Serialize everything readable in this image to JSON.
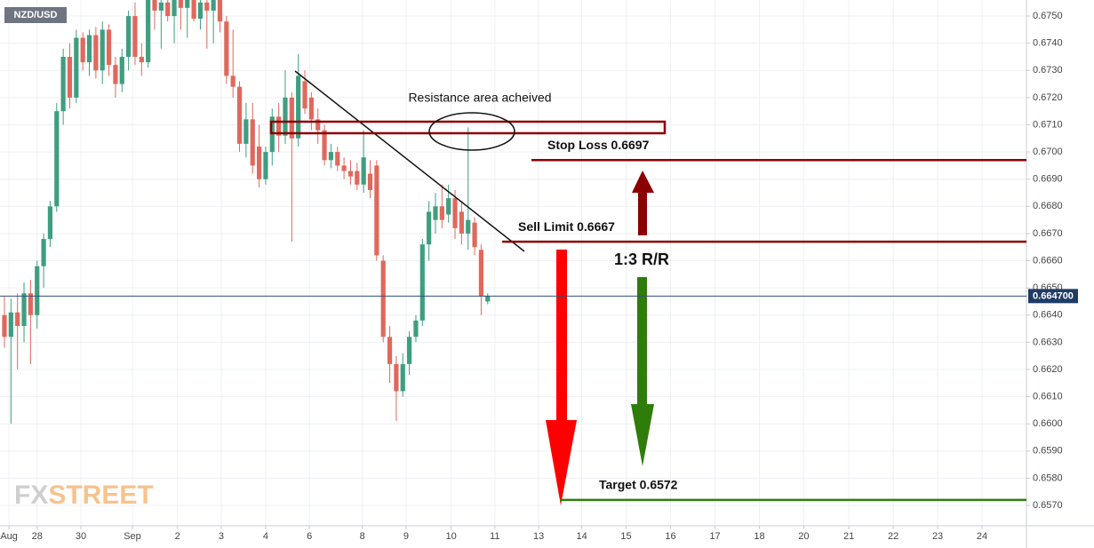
{
  "chart_data": {
    "type": "candlestick",
    "title": "NZD/USD",
    "up_color": "#3e9e80",
    "down_color": "#e0685c",
    "open": [
      0.664,
      0.6632,
      0.6641,
      0.6636,
      0.6648,
      0.664,
      0.6658,
      0.6668,
      0.668,
      0.6715,
      0.6735,
      0.672,
      0.6742,
      0.6733,
      0.6743,
      0.673,
      0.6745,
      0.6732,
      0.6725,
      0.6735,
      0.675,
      0.6735,
      0.6733,
      0.6756,
      0.6752,
      0.6755,
      0.675,
      0.6757,
      0.6753,
      0.6756,
      0.6749,
      0.6755,
      0.6752,
      0.6756,
      0.6748,
      0.6728,
      0.6724,
      0.6703,
      0.6712,
      0.6702,
      0.669,
      0.67,
      0.6713,
      0.6706,
      0.672,
      0.6705,
      0.6726,
      0.672,
      0.6712,
      0.6708,
      0.6697,
      0.67,
      0.6695,
      0.6693,
      0.6693,
      0.6688,
      0.6692,
      0.6695,
      0.666,
      0.6632,
      0.6622,
      0.6612,
      0.6622,
      0.6632,
      0.6638,
      0.6666,
      0.6675,
      0.668,
      0.6677,
      0.6683,
      0.6678,
      0.667,
      0.6674,
      0.6664,
      0.6645
    ],
    "high": [
      0.6647,
      0.6646,
      0.6648,
      0.6652,
      0.6653,
      0.666,
      0.667,
      0.6682,
      0.6718,
      0.6738,
      0.674,
      0.6745,
      0.6744,
      0.6745,
      0.6746,
      0.6748,
      0.6747,
      0.6735,
      0.6738,
      0.6752,
      0.6755,
      0.674,
      0.6758,
      0.676,
      0.6758,
      0.676,
      0.676,
      0.676,
      0.6758,
      0.676,
      0.6758,
      0.676,
      0.676,
      0.676,
      0.675,
      0.6745,
      0.6726,
      0.6718,
      0.6718,
      0.671,
      0.6702,
      0.6716,
      0.6718,
      0.673,
      0.6722,
      0.6736,
      0.673,
      0.6722,
      0.6716,
      0.671,
      0.6703,
      0.6702,
      0.6698,
      0.6697,
      0.6696,
      0.6708,
      0.6697,
      0.6697,
      0.6662,
      0.6636,
      0.6625,
      0.6626,
      0.6634,
      0.664,
      0.6668,
      0.6682,
      0.6685,
      0.6688,
      0.6688,
      0.6686,
      0.6682,
      0.6709,
      0.6676,
      0.6666,
      0.6648
    ],
    "low": [
      0.6628,
      0.66,
      0.662,
      0.663,
      0.6622,
      0.6635,
      0.665,
      0.6665,
      0.6678,
      0.671,
      0.6716,
      0.6718,
      0.673,
      0.6728,
      0.6727,
      0.6725,
      0.6728,
      0.672,
      0.6722,
      0.673,
      0.6732,
      0.6728,
      0.6731,
      0.6745,
      0.6738,
      0.6748,
      0.674,
      0.6745,
      0.6742,
      0.6748,
      0.6745,
      0.6738,
      0.674,
      0.6744,
      0.6725,
      0.672,
      0.67,
      0.6698,
      0.6692,
      0.6687,
      0.6688,
      0.6695,
      0.67,
      0.6703,
      0.6667,
      0.6702,
      0.6714,
      0.6708,
      0.6703,
      0.6695,
      0.6694,
      0.6693,
      0.669,
      0.6688,
      0.6686,
      0.6685,
      0.6683,
      0.666,
      0.663,
      0.6615,
      0.6601,
      0.661,
      0.6618,
      0.663,
      0.6636,
      0.666,
      0.667,
      0.6672,
      0.6674,
      0.6668,
      0.6666,
      0.6664,
      0.6662,
      0.664,
      0.6644
    ],
    "close": [
      0.6632,
      0.6641,
      0.6636,
      0.6648,
      0.664,
      0.6658,
      0.6668,
      0.668,
      0.6715,
      0.6735,
      0.672,
      0.6742,
      0.6733,
      0.6743,
      0.673,
      0.6745,
      0.6732,
      0.6725,
      0.6735,
      0.675,
      0.6735,
      0.6733,
      0.6756,
      0.6752,
      0.6755,
      0.675,
      0.6757,
      0.6753,
      0.6756,
      0.6749,
      0.6755,
      0.6752,
      0.6756,
      0.6748,
      0.6728,
      0.6724,
      0.6703,
      0.6712,
      0.6695,
      0.669,
      0.67,
      0.6713,
      0.6706,
      0.672,
      0.6705,
      0.6728,
      0.6716,
      0.6712,
      0.6708,
      0.6697,
      0.67,
      0.6695,
      0.6693,
      0.6691,
      0.6688,
      0.6698,
      0.6686,
      0.6662,
      0.6632,
      0.6622,
      0.6612,
      0.6622,
      0.6632,
      0.6638,
      0.6666,
      0.6678,
      0.668,
      0.6675,
      0.6683,
      0.6672,
      0.667,
      0.6675,
      0.6665,
      0.6647,
      0.6647
    ],
    "xlim": [
      -0.68,
      156.5
    ],
    "xticks": [
      {
        "value": 0.7,
        "label": "Aug"
      },
      {
        "value": 5.0,
        "label": "28"
      },
      {
        "value": 11.7,
        "label": "30"
      },
      {
        "value": 19.6,
        "label": "Sep"
      },
      {
        "value": 26.5,
        "label": "2"
      },
      {
        "value": 33.2,
        "label": "3"
      },
      {
        "value": 40.0,
        "label": "4"
      },
      {
        "value": 46.7,
        "label": "6"
      },
      {
        "value": 54.8,
        "label": "8"
      },
      {
        "value": 61.5,
        "label": "9"
      },
      {
        "value": 68.4,
        "label": "10"
      },
      {
        "value": 75.1,
        "label": "11"
      },
      {
        "value": 81.8,
        "label": "13"
      },
      {
        "value": 88.4,
        "label": "14"
      },
      {
        "value": 95.2,
        "label": "15"
      },
      {
        "value": 102.0,
        "label": "16"
      },
      {
        "value": 108.8,
        "label": "17"
      },
      {
        "value": 115.6,
        "label": "18"
      },
      {
        "value": 122.4,
        "label": "20"
      },
      {
        "value": 129.3,
        "label": "21"
      },
      {
        "value": 136.1,
        "label": "22"
      },
      {
        "value": 142.9,
        "label": "23"
      },
      {
        "value": 149.7,
        "label": "24"
      }
    ],
    "ylim": [
      0.65625,
      0.67559
    ],
    "yticks": [
      {
        "value": 0.657,
        "label": "0.6570"
      },
      {
        "value": 0.658,
        "label": "0.6580"
      },
      {
        "value": 0.659,
        "label": "0.6590"
      },
      {
        "value": 0.66,
        "label": "0.6600"
      },
      {
        "value": 0.661,
        "label": "0.6610"
      },
      {
        "value": 0.662,
        "label": "0.6620"
      },
      {
        "value": 0.663,
        "label": "0.6630"
      },
      {
        "value": 0.664,
        "label": "0.6640"
      },
      {
        "value": 0.665,
        "label": "0.6650"
      },
      {
        "value": 0.666,
        "label": "0.6660"
      },
      {
        "value": 0.667,
        "label": "0.6670"
      },
      {
        "value": 0.668,
        "label": "0.6680"
      },
      {
        "value": 0.669,
        "label": "0.6690"
      },
      {
        "value": 0.67,
        "label": "0.6700"
      },
      {
        "value": 0.671,
        "label": "0.6710"
      },
      {
        "value": 0.672,
        "label": "0.6720"
      },
      {
        "value": 0.673,
        "label": "0.6730"
      },
      {
        "value": 0.674,
        "label": "0.6740"
      },
      {
        "value": 0.675,
        "label": "0.6750"
      }
    ],
    "grid": true,
    "last_price": {
      "value": 0.6647,
      "label": "0.664700"
    },
    "levels": [
      {
        "value": 0.6697,
        "label": "Stop Loss 0.6697",
        "color": "#8b0000"
      },
      {
        "value": 0.6667,
        "label": "Sell Limit 0.6667",
        "color": "#8b0000"
      },
      {
        "value": 0.6572,
        "label": "Target 0.6572",
        "color": "#2e7d0a"
      }
    ],
    "annotations": [
      "Resistance area acheived",
      "1:3 R/R"
    ],
    "watermark": [
      "FX",
      "STREET"
    ]
  }
}
